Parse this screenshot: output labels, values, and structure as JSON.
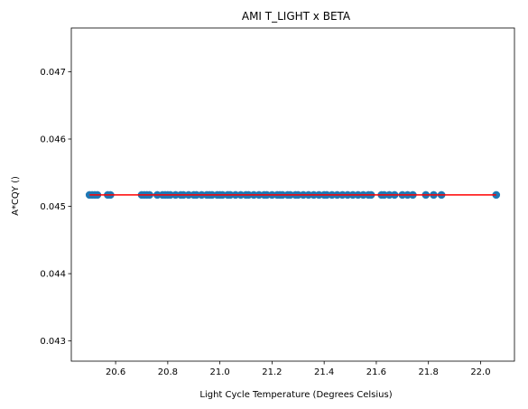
{
  "chart_data": {
    "type": "scatter",
    "title": "AMI T_LIGHT x BETA",
    "xlabel": "Light Cycle Temperature (Degrees Celsius)",
    "ylabel": "A*CQY ()",
    "xlim": [
      20.43,
      22.13
    ],
    "ylim": [
      0.0427,
      0.04765
    ],
    "xticks": [
      20.6,
      20.8,
      21.0,
      21.2,
      21.4,
      21.6,
      21.8,
      22.0
    ],
    "xtick_labels": [
      "20.6",
      "20.8",
      "21.0",
      "21.2",
      "21.4",
      "21.6",
      "21.8",
      "22.0"
    ],
    "yticks": [
      0.043,
      0.044,
      0.045,
      0.046,
      0.047
    ],
    "ytick_labels": [
      "0.043",
      "0.044",
      "0.045",
      "0.046",
      "0.047"
    ],
    "grid": false,
    "legend": "none",
    "point_color": "#1f77b4",
    "fit_color": "#ff0000",
    "series": [
      {
        "values_y": 0.04517,
        "x": [
          20.5,
          20.51,
          20.52,
          20.53,
          20.57,
          20.58,
          20.7,
          20.71,
          20.72,
          20.73,
          20.76,
          20.78,
          20.79,
          20.8,
          20.81,
          20.83,
          20.85,
          20.86,
          20.88,
          20.9,
          20.91,
          20.93,
          20.95,
          20.96,
          20.97,
          20.99,
          21.0,
          21.01,
          21.03,
          21.04,
          21.06,
          21.08,
          21.1,
          21.11,
          21.13,
          21.15,
          21.17,
          21.18,
          21.2,
          21.22,
          21.23,
          21.24,
          21.26,
          21.27,
          21.29,
          21.3,
          21.32,
          21.34,
          21.36,
          21.38,
          21.4,
          21.41,
          21.43,
          21.45,
          21.47,
          21.49,
          21.51,
          21.53,
          21.55,
          21.57,
          21.58,
          21.62,
          21.63,
          21.65,
          21.67,
          21.7,
          21.72,
          21.74,
          21.79,
          21.82,
          21.85,
          22.06
        ]
      }
    ],
    "fit_line": {
      "x": [
        20.5,
        22.06
      ],
      "y": [
        0.04517,
        0.04517
      ]
    }
  }
}
